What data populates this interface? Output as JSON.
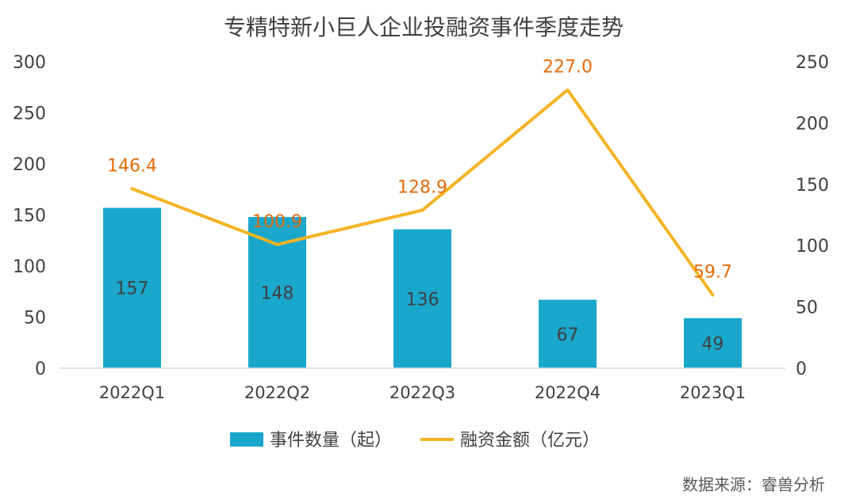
{
  "chart_data": {
    "type": "bar",
    "title": "专精特新小巨人企业投融资事件季度走势",
    "categories": [
      "2022Q1",
      "2022Q2",
      "2022Q3",
      "2022Q4",
      "2023Q1"
    ],
    "series": [
      {
        "name": "事件数量（起）",
        "type": "bar",
        "axis": "left",
        "values": [
          157,
          148,
          136,
          67,
          49
        ],
        "color": "#1AA7CC"
      },
      {
        "name": "融资金额（亿元）",
        "type": "line",
        "axis": "right",
        "values": [
          146.4,
          100.9,
          128.9,
          227.0,
          59.7
        ],
        "labels": [
          "146.4",
          "100.9",
          "128.9",
          "227.0",
          "59.7"
        ],
        "color": "#F5B323"
      }
    ],
    "y_left": {
      "min": 0,
      "max": 300,
      "ticks": [
        0,
        50,
        100,
        150,
        200,
        250,
        300
      ]
    },
    "y_right": {
      "min": 0,
      "max": 250,
      "ticks": [
        0,
        50,
        100,
        150,
        200,
        250
      ]
    },
    "label_color": "#E36C0A",
    "legend_position": "bottom",
    "grid": false,
    "source": "数据来源：睿兽分析"
  }
}
